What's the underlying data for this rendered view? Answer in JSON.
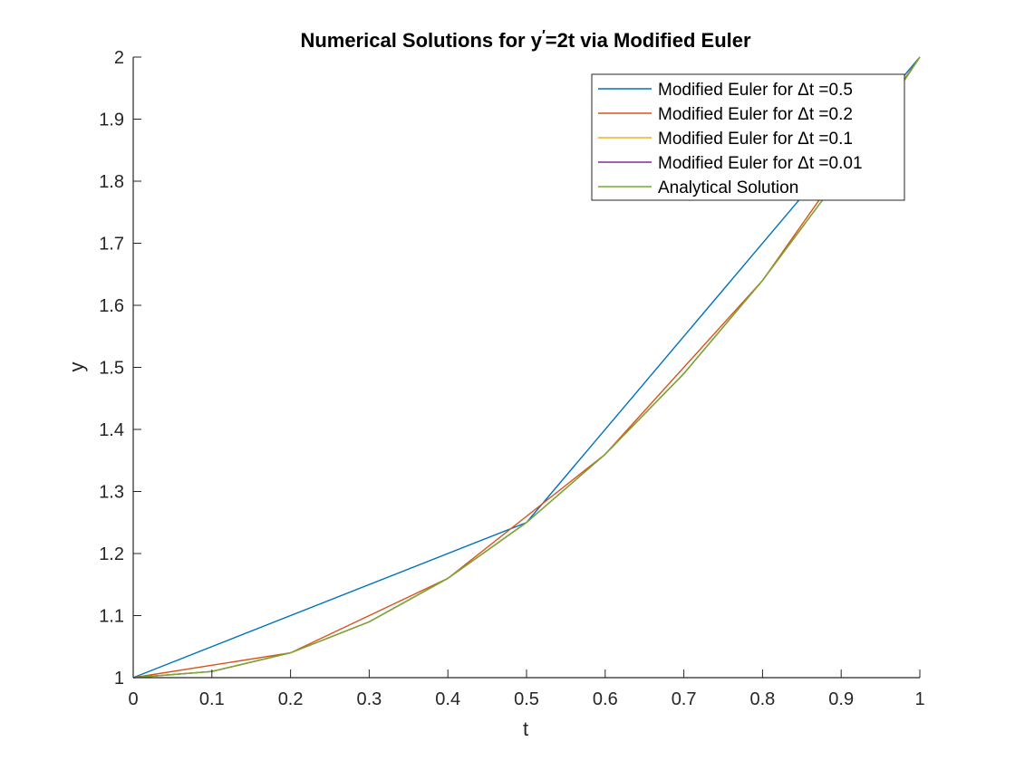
{
  "chart_data": {
    "type": "line",
    "title_parts": {
      "pre": "Numerical Solutions for y",
      "prime": "′",
      "post": "=2t via Modified Euler"
    },
    "xlabel": "t",
    "ylabel": "y",
    "xlim": [
      0,
      1
    ],
    "ylim": [
      1,
      2
    ],
    "xticks": [
      "0",
      "0.1",
      "0.2",
      "0.3",
      "0.4",
      "0.5",
      "0.6",
      "0.7",
      "0.8",
      "0.9",
      "1"
    ],
    "yticks": [
      "1",
      "1.1",
      "1.2",
      "1.3",
      "1.4",
      "1.5",
      "1.6",
      "1.7",
      "1.8",
      "1.9",
      "2"
    ],
    "grid": false,
    "legend_position": "top-right",
    "series": [
      {
        "name": "Modified Euler for Δt =0.5",
        "color": "#0072BD",
        "x": [
          0,
          0.5,
          1
        ],
        "y": [
          1,
          1.25,
          2
        ]
      },
      {
        "name": "Modified Euler for Δt =0.2",
        "color": "#D95319",
        "x": [
          0,
          0.2,
          0.4,
          0.6,
          0.8,
          1.0
        ],
        "y": [
          1,
          1.04,
          1.16,
          1.36,
          1.64,
          2.0
        ]
      },
      {
        "name": "Modified Euler for Δt =0.1",
        "color": "#EDB120",
        "x": [
          0,
          0.1,
          0.2,
          0.3,
          0.4,
          0.5,
          0.6,
          0.7,
          0.8,
          0.9,
          1.0
        ],
        "y": [
          1,
          1.01,
          1.04,
          1.09,
          1.16,
          1.25,
          1.36,
          1.49,
          1.64,
          1.81,
          2.0
        ]
      },
      {
        "name": "Modified Euler for Δt =0.01",
        "color": "#7E2F8E",
        "x": [
          0,
          0.1,
          0.2,
          0.3,
          0.4,
          0.5,
          0.6,
          0.7,
          0.8,
          0.9,
          1.0
        ],
        "y": [
          1,
          1.01,
          1.04,
          1.09,
          1.16,
          1.25,
          1.36,
          1.49,
          1.64,
          1.81,
          2.0
        ]
      },
      {
        "name": "Analytical Solution",
        "color": "#77AC30",
        "x": [
          0,
          0.1,
          0.2,
          0.3,
          0.4,
          0.5,
          0.6,
          0.7,
          0.8,
          0.9,
          1.0
        ],
        "y": [
          1,
          1.01,
          1.04,
          1.09,
          1.16,
          1.25,
          1.36,
          1.49,
          1.64,
          1.81,
          2.0
        ]
      }
    ]
  }
}
